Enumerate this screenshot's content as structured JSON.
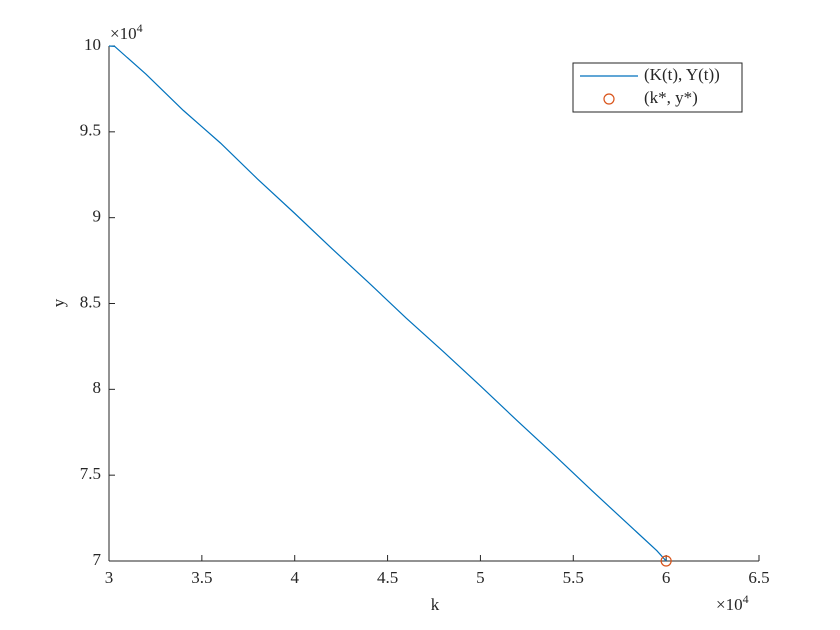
{
  "chart_data": {
    "type": "line",
    "xlabel": "k",
    "ylabel": "y",
    "x_multiplier": {
      "base": "×10",
      "exponent": "4"
    },
    "y_multiplier": {
      "base": "×10",
      "exponent": "4"
    },
    "xlim": [
      30000,
      65000
    ],
    "xticks": [
      {
        "value": 30000,
        "label": "3"
      },
      {
        "value": 35000,
        "label": "3.5"
      },
      {
        "value": 40000,
        "label": "4"
      },
      {
        "value": 45000,
        "label": "4.5"
      },
      {
        "value": 50000,
        "label": "5"
      },
      {
        "value": 55000,
        "label": "5.5"
      },
      {
        "value": 60000,
        "label": "6"
      },
      {
        "value": 65000,
        "label": "6.5"
      }
    ],
    "ylim": [
      70000,
      100000
    ],
    "yticks": [
      {
        "value": 70000,
        "label": "7"
      },
      {
        "value": 75000,
        "label": "7.5"
      },
      {
        "value": 80000,
        "label": "8"
      },
      {
        "value": 85000,
        "label": "8.5"
      },
      {
        "value": 90000,
        "label": "9"
      },
      {
        "value": 95000,
        "label": "9.5"
      },
      {
        "value": 100000,
        "label": "10"
      }
    ],
    "legend_position": "upper-right",
    "series": [
      {
        "name": "(K(t), Y(t))",
        "color": "#0072bd",
        "style": "line",
        "x": [
          30000,
          30300,
          32000,
          34000,
          35000,
          36000,
          38000,
          40000,
          42000,
          44000,
          46000,
          48000,
          50000,
          52000,
          54000,
          56000,
          58000,
          59500,
          60000
        ],
        "values": [
          100000,
          99980,
          98350,
          96250,
          95300,
          94350,
          92250,
          90250,
          88200,
          86200,
          84150,
          82200,
          80200,
          78150,
          76150,
          74100,
          72100,
          70600,
          70000
        ]
      },
      {
        "name": "(k*, y*)",
        "color": "#d95319",
        "style": "marker",
        "x": [
          60000
        ],
        "values": [
          70000
        ]
      }
    ]
  }
}
